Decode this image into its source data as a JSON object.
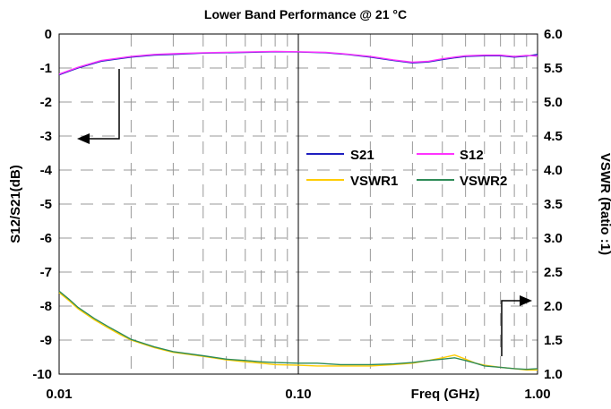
{
  "chart_data": {
    "type": "line",
    "title": "Lower Band Performance @ 21 °C",
    "xlabel": "Freq (GHz)",
    "ylabel_left": "S12/S21(dB)",
    "ylabel_right": "VSWR (Ratio :1)",
    "x_scale": "log",
    "xlim": [
      0.01,
      1.0
    ],
    "x_ticks": [
      "0.01",
      "0.10",
      "1.00"
    ],
    "ylim_left": [
      -10,
      0
    ],
    "y_ticks_left": [
      "0",
      "-1",
      "-2",
      "-3",
      "-4",
      "-5",
      "-6",
      "-7",
      "-8",
      "-9",
      "-10"
    ],
    "ylim_right": [
      1.0,
      6.0
    ],
    "y_ticks_right": [
      "6.0",
      "5.5",
      "5.0",
      "4.5",
      "4.0",
      "3.5",
      "3.0",
      "2.5",
      "2.0",
      "1.5",
      "1.0"
    ],
    "grid": true,
    "legend_position": "center-right",
    "series": [
      {
        "name": "S21",
        "axis": "left",
        "color": "#1f1fbf",
        "x": [
          0.01,
          0.012,
          0.015,
          0.02,
          0.025,
          0.03,
          0.04,
          0.05,
          0.06,
          0.08,
          0.1,
          0.13,
          0.16,
          0.2,
          0.25,
          0.3,
          0.35,
          0.4,
          0.45,
          0.5,
          0.6,
          0.7,
          0.8,
          0.9,
          1.0
        ],
        "values": [
          -1.2,
          -1.0,
          -0.8,
          -0.68,
          -0.62,
          -0.6,
          -0.56,
          -0.55,
          -0.54,
          -0.52,
          -0.53,
          -0.55,
          -0.6,
          -0.68,
          -0.78,
          -0.85,
          -0.82,
          -0.75,
          -0.7,
          -0.66,
          -0.64,
          -0.64,
          -0.68,
          -0.65,
          -0.6
        ]
      },
      {
        "name": "S12",
        "axis": "left",
        "color": "#ff33ff",
        "x": [
          0.01,
          0.012,
          0.015,
          0.02,
          0.025,
          0.03,
          0.04,
          0.05,
          0.06,
          0.08,
          0.1,
          0.13,
          0.16,
          0.2,
          0.25,
          0.3,
          0.35,
          0.4,
          0.45,
          0.5,
          0.6,
          0.7,
          0.8,
          0.9,
          1.0
        ],
        "values": [
          -1.18,
          -0.98,
          -0.78,
          -0.66,
          -0.6,
          -0.58,
          -0.55,
          -0.54,
          -0.53,
          -0.51,
          -0.52,
          -0.54,
          -0.59,
          -0.66,
          -0.76,
          -0.83,
          -0.8,
          -0.73,
          -0.68,
          -0.64,
          -0.62,
          -0.62,
          -0.66,
          -0.63,
          -0.65
        ]
      },
      {
        "name": "VSWR1",
        "axis": "right",
        "color": "#ffcc00",
        "x": [
          0.01,
          0.011,
          0.012,
          0.014,
          0.016,
          0.018,
          0.02,
          0.025,
          0.03,
          0.04,
          0.05,
          0.06,
          0.07,
          0.08,
          0.1,
          0.12,
          0.15,
          0.2,
          0.25,
          0.3,
          0.35,
          0.4,
          0.45,
          0.5,
          0.55,
          0.6,
          0.7,
          0.8,
          0.9,
          1.0
        ],
        "values": [
          2.2,
          2.08,
          1.96,
          1.8,
          1.68,
          1.58,
          1.5,
          1.39,
          1.32,
          1.26,
          1.21,
          1.18,
          1.16,
          1.14,
          1.13,
          1.12,
          1.12,
          1.12,
          1.14,
          1.16,
          1.2,
          1.24,
          1.28,
          1.22,
          1.16,
          1.13,
          1.1,
          1.08,
          1.06,
          1.06
        ]
      },
      {
        "name": "VSWR2",
        "axis": "right",
        "color": "#2e8b57",
        "x": [
          0.01,
          0.011,
          0.012,
          0.014,
          0.016,
          0.018,
          0.02,
          0.025,
          0.03,
          0.04,
          0.05,
          0.06,
          0.07,
          0.08,
          0.1,
          0.12,
          0.15,
          0.2,
          0.25,
          0.3,
          0.35,
          0.4,
          0.45,
          0.5,
          0.55,
          0.6,
          0.7,
          0.8,
          0.9,
          1.0
        ],
        "values": [
          2.22,
          2.1,
          1.98,
          1.82,
          1.7,
          1.6,
          1.51,
          1.4,
          1.33,
          1.27,
          1.22,
          1.2,
          1.18,
          1.17,
          1.16,
          1.16,
          1.14,
          1.14,
          1.15,
          1.17,
          1.2,
          1.22,
          1.24,
          1.2,
          1.16,
          1.12,
          1.1,
          1.08,
          1.07,
          1.08
        ]
      }
    ],
    "annotations": [
      {
        "type": "arrow",
        "points_to": "left axis"
      },
      {
        "type": "arrow",
        "points_to": "right axis"
      }
    ]
  }
}
